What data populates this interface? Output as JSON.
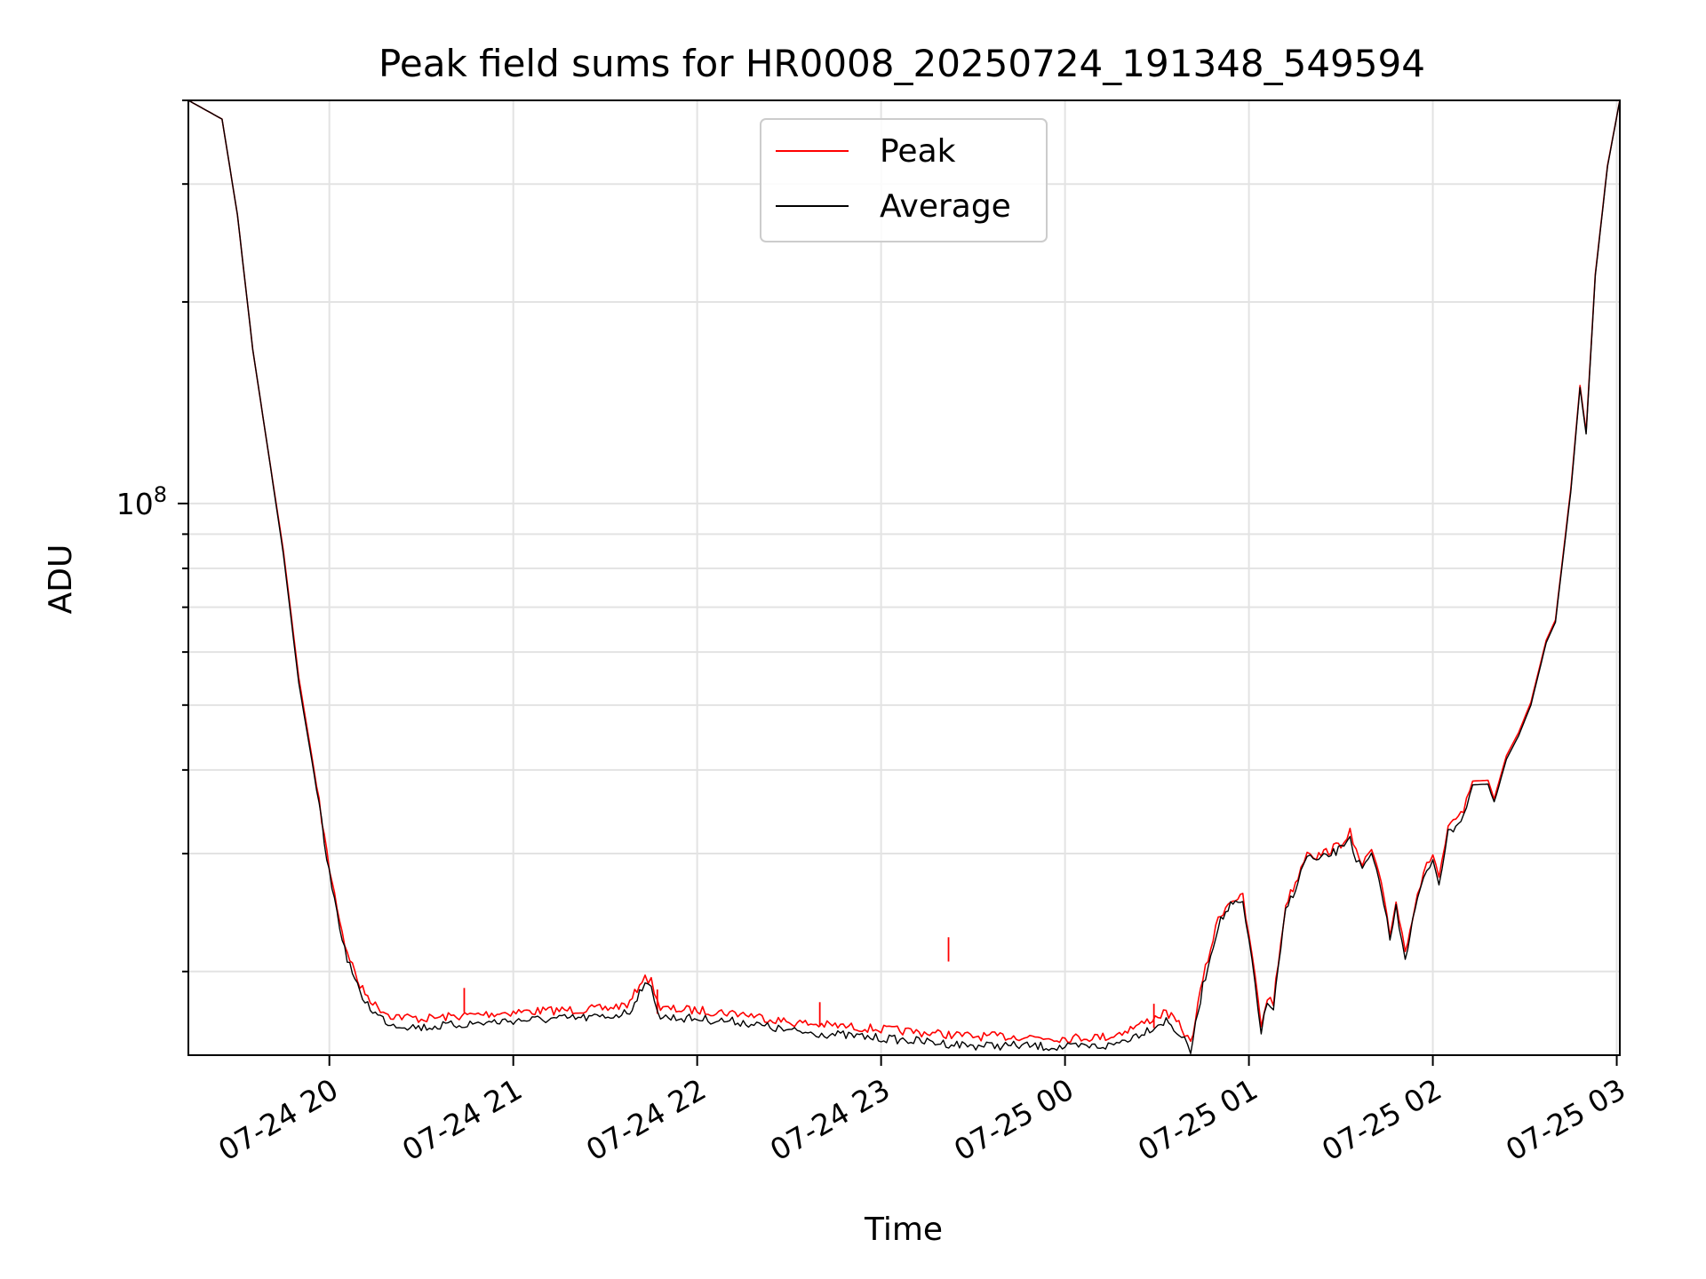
{
  "chart_data": {
    "type": "line",
    "title": "Peak field sums for HR0008_20250724_191348_549594",
    "xlabel": "Time",
    "ylabel": "ADU",
    "yscale": "log",
    "ylim": [
      15000000,
      400000000
    ],
    "xlim": [
      "2025-07-24 19:14",
      "2025-07-25 03:01"
    ],
    "x_ticks": [
      "2025-07-24 20:00",
      "2025-07-24 21:00",
      "2025-07-24 22:00",
      "2025-07-24 23:00",
      "2025-07-25 00:00",
      "2025-07-25 01:00",
      "2025-07-25 02:00",
      "2025-07-25 03:00"
    ],
    "x_tick_labels": [
      "07-24 20",
      "07-24 21",
      "07-24 22",
      "07-24 23",
      "07-25 00",
      "07-25 01",
      "07-25 02",
      "07-25 03"
    ],
    "y_tick_label": {
      "base": "10",
      "exp": "8"
    },
    "y_tick_value": 100000000,
    "grid": true,
    "legend_position": "upper center",
    "series": [
      {
        "name": "Peak",
        "color": "#ff0000",
        "points": [
          [
            "2025-07-24 19:14",
            400000000
          ],
          [
            "2025-07-24 19:25",
            375000000
          ],
          [
            "2025-07-24 19:30",
            270000000
          ],
          [
            "2025-07-24 19:35",
            170000000
          ],
          [
            "2025-07-24 19:40",
            120000000
          ],
          [
            "2025-07-24 19:45",
            85000000
          ],
          [
            "2025-07-24 19:50",
            55000000
          ],
          [
            "2025-07-24 19:55",
            40000000
          ],
          [
            "2025-07-24 20:00",
            28500000
          ],
          [
            "2025-07-24 20:05",
            22000000
          ],
          [
            "2025-07-24 20:10",
            19000000
          ],
          [
            "2025-07-24 20:15",
            17800000
          ],
          [
            "2025-07-24 20:20",
            17200000
          ],
          [
            "2025-07-24 20:30",
            17000000
          ],
          [
            "2025-07-24 20:45",
            17200000
          ],
          [
            "2025-07-24 21:00",
            17400000
          ],
          [
            "2025-07-24 21:15",
            17500000
          ],
          [
            "2025-07-24 21:30",
            17600000
          ],
          [
            "2025-07-24 21:38",
            17900000
          ],
          [
            "2025-07-24 21:42",
            19500000
          ],
          [
            "2025-07-24 21:45",
            19400000
          ],
          [
            "2025-07-24 21:48",
            17600000
          ],
          [
            "2025-07-24 22:00",
            17500000
          ],
          [
            "2025-07-24 22:15",
            17300000
          ],
          [
            "2025-07-24 22:30",
            16800000
          ],
          [
            "2025-07-24 22:45",
            16600000
          ],
          [
            "2025-07-24 23:00",
            16400000
          ],
          [
            "2025-07-24 23:15",
            16200000
          ],
          [
            "2025-07-24 23:30",
            16000000
          ],
          [
            "2025-07-24 23:45",
            16000000
          ],
          [
            "2025-07-25 00:00",
            15900000
          ],
          [
            "2025-07-25 00:15",
            16000000
          ],
          [
            "2025-07-25 00:25",
            16700000
          ],
          [
            "2025-07-25 00:33",
            17400000
          ],
          [
            "2025-07-25 00:38",
            16500000
          ],
          [
            "2025-07-25 00:41",
            15600000
          ],
          [
            "2025-07-25 00:45",
            19500000
          ],
          [
            "2025-07-25 00:50",
            24000000
          ],
          [
            "2025-07-25 00:54",
            25600000
          ],
          [
            "2025-07-25 00:58",
            25800000
          ],
          [
            "2025-07-25 01:00",
            22500000
          ],
          [
            "2025-07-25 01:01",
            21300000
          ],
          [
            "2025-07-25 01:04",
            16600000
          ],
          [
            "2025-07-25 01:06",
            18300000
          ],
          [
            "2025-07-25 01:08",
            18000000
          ],
          [
            "2025-07-25 01:12",
            25200000
          ],
          [
            "2025-07-25 01:16",
            27700000
          ],
          [
            "2025-07-25 01:19",
            30400000
          ],
          [
            "2025-07-25 01:22",
            29700000
          ],
          [
            "2025-07-25 01:26",
            30300000
          ],
          [
            "2025-07-25 01:30",
            31000000
          ],
          [
            "2025-07-25 01:33",
            32500000
          ],
          [
            "2025-07-25 01:34",
            30700000
          ],
          [
            "2025-07-25 01:37",
            28800000
          ],
          [
            "2025-07-25 01:40",
            30400000
          ],
          [
            "2025-07-25 01:44",
            26000000
          ],
          [
            "2025-07-25 01:46",
            22800000
          ],
          [
            "2025-07-25 01:48",
            25400000
          ],
          [
            "2025-07-25 01:51",
            21500000
          ],
          [
            "2025-07-25 01:55",
            26200000
          ],
          [
            "2025-07-25 01:58",
            28700000
          ],
          [
            "2025-07-25 02:00",
            30000000
          ],
          [
            "2025-07-25 02:02",
            27700000
          ],
          [
            "2025-07-25 02:05",
            32600000
          ],
          [
            "2025-07-25 02:10",
            34700000
          ],
          [
            "2025-07-25 02:13",
            38500000
          ],
          [
            "2025-07-25 02:18",
            38600000
          ],
          [
            "2025-07-25 02:20",
            36200000
          ],
          [
            "2025-07-25 02:24",
            42000000
          ],
          [
            "2025-07-25 02:28",
            45500000
          ],
          [
            "2025-07-25 02:32",
            50500000
          ],
          [
            "2025-07-25 02:37",
            62500000
          ],
          [
            "2025-07-25 02:40",
            67000000
          ],
          [
            "2025-07-25 02:45",
            105000000
          ],
          [
            "2025-07-25 02:48",
            150000000
          ],
          [
            "2025-07-25 02:50",
            128000000
          ],
          [
            "2025-07-25 02:53",
            220000000
          ],
          [
            "2025-07-25 02:57",
            320000000
          ],
          [
            "2025-07-25 03:01",
            400000000
          ]
        ],
        "spikes": [
          [
            "2025-07-24 20:44",
            18900000
          ],
          [
            "2025-07-24 21:47",
            18800000
          ],
          [
            "2025-07-24 22:40",
            18000000
          ],
          [
            "2025-07-24 23:22",
            22500000
          ],
          [
            "2025-07-25 00:29",
            17900000
          ]
        ]
      },
      {
        "name": "Average",
        "color": "#000000",
        "points": [
          [
            "2025-07-24 19:14",
            400000000
          ],
          [
            "2025-07-24 19:25",
            375000000
          ],
          [
            "2025-07-24 19:30",
            270000000
          ],
          [
            "2025-07-24 19:35",
            170000000
          ],
          [
            "2025-07-24 19:40",
            120000000
          ],
          [
            "2025-07-24 19:45",
            84000000
          ],
          [
            "2025-07-24 19:50",
            54000000
          ],
          [
            "2025-07-24 19:55",
            39500000
          ],
          [
            "2025-07-24 20:00",
            28000000
          ],
          [
            "2025-07-24 20:05",
            21500000
          ],
          [
            "2025-07-24 20:10",
            18500000
          ],
          [
            "2025-07-24 20:15",
            17300000
          ],
          [
            "2025-07-24 20:20",
            16700000
          ],
          [
            "2025-07-24 20:30",
            16500000
          ],
          [
            "2025-07-24 20:45",
            16700000
          ],
          [
            "2025-07-24 21:00",
            16900000
          ],
          [
            "2025-07-24 21:15",
            17000000
          ],
          [
            "2025-07-24 21:30",
            17100000
          ],
          [
            "2025-07-24 21:38",
            17400000
          ],
          [
            "2025-07-24 21:42",
            19000000
          ],
          [
            "2025-07-24 21:45",
            18900000
          ],
          [
            "2025-07-24 21:48",
            17100000
          ],
          [
            "2025-07-24 22:00",
            17000000
          ],
          [
            "2025-07-24 22:15",
            16800000
          ],
          [
            "2025-07-24 22:30",
            16300000
          ],
          [
            "2025-07-24 22:45",
            16100000
          ],
          [
            "2025-07-24 23:00",
            15900000
          ],
          [
            "2025-07-24 23:15",
            15700000
          ],
          [
            "2025-07-24 23:30",
            15500000
          ],
          [
            "2025-07-24 23:45",
            15500000
          ],
          [
            "2025-07-25 00:00",
            15400000
          ],
          [
            "2025-07-25 00:15",
            15500000
          ],
          [
            "2025-07-25 00:25",
            16200000
          ],
          [
            "2025-07-25 00:33",
            16900000
          ],
          [
            "2025-07-25 00:38",
            16000000
          ],
          [
            "2025-07-25 00:41",
            15200000
          ],
          [
            "2025-07-25 00:45",
            19000000
          ],
          [
            "2025-07-25 00:50",
            23500000
          ],
          [
            "2025-07-25 00:54",
            25100000
          ],
          [
            "2025-07-25 00:58",
            25300000
          ],
          [
            "2025-07-25 01:00",
            22000000
          ],
          [
            "2025-07-25 01:01",
            20800000
          ],
          [
            "2025-07-25 01:04",
            16300000
          ],
          [
            "2025-07-25 01:06",
            17900000
          ],
          [
            "2025-07-25 01:08",
            17600000
          ],
          [
            "2025-07-25 01:12",
            24700000
          ],
          [
            "2025-07-25 01:16",
            27200000
          ],
          [
            "2025-07-25 01:19",
            29900000
          ],
          [
            "2025-07-25 01:22",
            29200000
          ],
          [
            "2025-07-25 01:26",
            29800000
          ],
          [
            "2025-07-25 01:30",
            30500000
          ],
          [
            "2025-07-25 01:33",
            32000000
          ],
          [
            "2025-07-25 01:34",
            30200000
          ],
          [
            "2025-07-25 01:37",
            28300000
          ],
          [
            "2025-07-25 01:40",
            29900000
          ],
          [
            "2025-07-25 01:44",
            25500000
          ],
          [
            "2025-07-25 01:46",
            22300000
          ],
          [
            "2025-07-25 01:48",
            24900000
          ],
          [
            "2025-07-25 01:51",
            21000000
          ],
          [
            "2025-07-25 01:55",
            25700000
          ],
          [
            "2025-07-25 01:58",
            28200000
          ],
          [
            "2025-07-25 02:00",
            29500000
          ],
          [
            "2025-07-25 02:02",
            27200000
          ],
          [
            "2025-07-25 02:05",
            32100000
          ],
          [
            "2025-07-25 02:10",
            34200000
          ],
          [
            "2025-07-25 02:13",
            38000000
          ],
          [
            "2025-07-25 02:18",
            38100000
          ],
          [
            "2025-07-25 02:20",
            35700000
          ],
          [
            "2025-07-25 02:24",
            41500000
          ],
          [
            "2025-07-25 02:28",
            45000000
          ],
          [
            "2025-07-25 02:32",
            50000000
          ],
          [
            "2025-07-25 02:37",
            62000000
          ],
          [
            "2025-07-25 02:40",
            66500000
          ],
          [
            "2025-07-25 02:45",
            104000000
          ],
          [
            "2025-07-25 02:48",
            149000000
          ],
          [
            "2025-07-25 02:50",
            127000000
          ],
          [
            "2025-07-25 02:53",
            219000000
          ],
          [
            "2025-07-25 02:57",
            319000000
          ],
          [
            "2025-07-25 03:01",
            400000000
          ]
        ]
      }
    ]
  }
}
